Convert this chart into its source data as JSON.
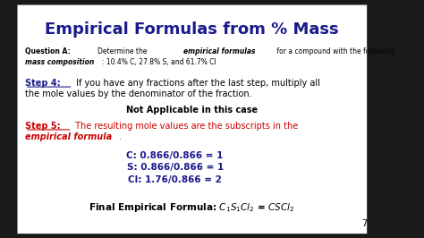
{
  "title": "Empirical Formulas from % Mass",
  "bg_color": "#ffffff",
  "slide_bg": "#f0f0f0",
  "title_color": "#1a1a8c",
  "black": "#000000",
  "red": "#cc0000",
  "dark_navy": "#1a1a8c",
  "question_line1": "Question A: Determine the empirical formulas for a compound with the following",
  "question_line2": "mass composition: 10.4% C, 27.8% S, and 61.7% Cl",
  "step4_label": "Step 4:",
  "step4_text": " If you have any fractions after the last step, multiply all",
  "step4_text2": "the mole values by the denominator of the fraction.",
  "not_applicable": "Not Applicable in this case",
  "step5_label": "Step 5:",
  "step5_text": " The resulting mole values are the subscripts in the",
  "step5_text2_italic": "empirical formula",
  "step5_text2_end": ".",
  "calc_c": "C: 0.866/0.866 = 1",
  "calc_s": "S: 0.866/0.866 = 1",
  "calc_cl": "Cl: 1.76/0.866 = 2",
  "final_label": "Final Empirical Formula: C",
  "page_num": "7"
}
